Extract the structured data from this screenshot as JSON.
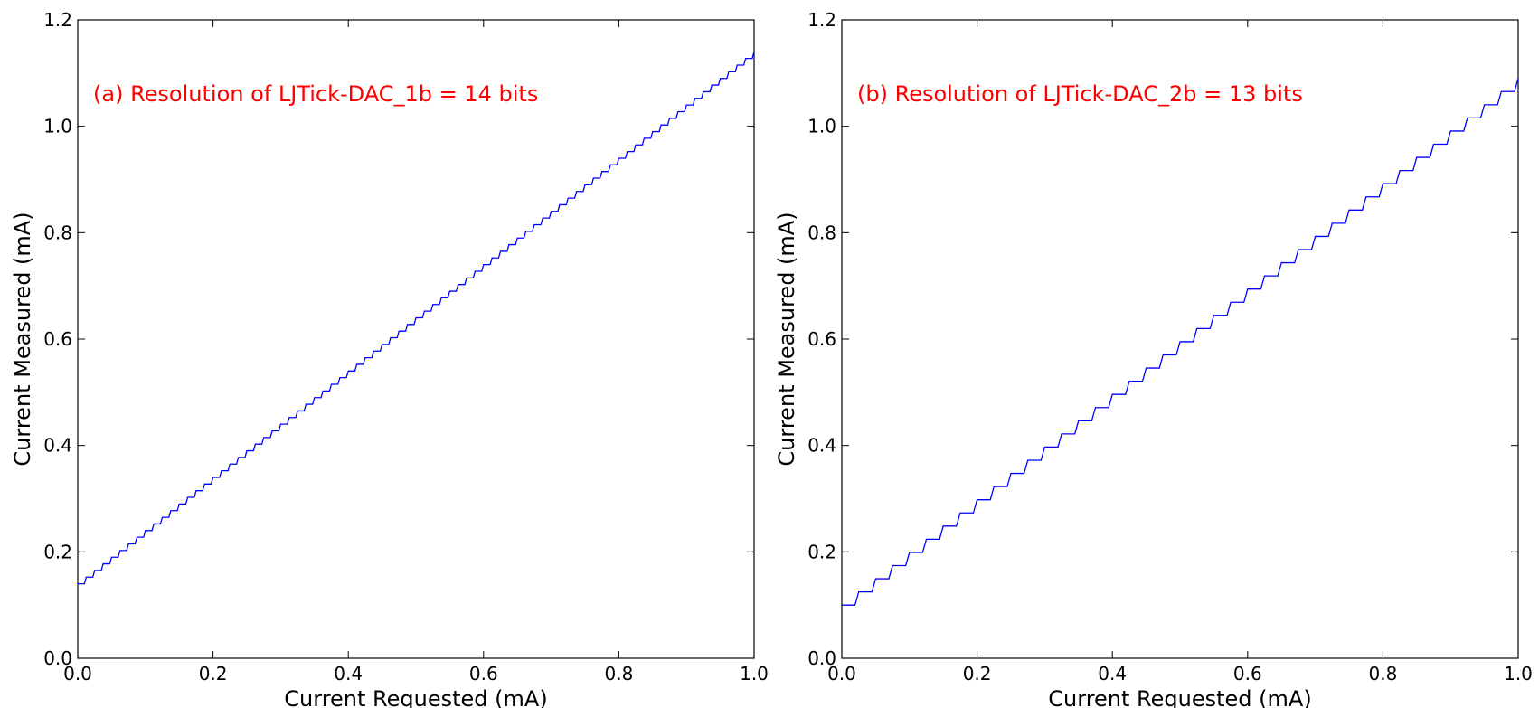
{
  "chart_data": [
    {
      "type": "line",
      "title": "",
      "xlabel": "Current Requested (mA)",
      "ylabel": "Current Measured (mA)",
      "xlim": [
        0.0,
        1.0
      ],
      "ylim": [
        0.0,
        1.2
      ],
      "xticks": [
        "0.0",
        "0.2",
        "0.4",
        "0.6",
        "0.8",
        "1.0"
      ],
      "yticks": [
        "0.0",
        "0.2",
        "0.4",
        "0.6",
        "0.8",
        "1.0",
        "1.2"
      ],
      "annotation": "(a) Resolution of LJTick-DAC_1b = 14 bits",
      "annotation_color": "#ff0000",
      "grid": false,
      "series": [
        {
          "color": "#0000ff",
          "x_start": 0.0,
          "x_end": 1.0,
          "y_start": 0.14,
          "y_end": 1.14,
          "step_count": 80,
          "shape": "staircase"
        }
      ]
    },
    {
      "type": "line",
      "title": "",
      "xlabel": "Current Requested (mA)",
      "ylabel": "Current Measured (mA)",
      "xlim": [
        0.0,
        1.0
      ],
      "ylim": [
        0.0,
        1.2
      ],
      "xticks": [
        "0.0",
        "0.2",
        "0.4",
        "0.6",
        "0.8",
        "1.0"
      ],
      "yticks": [
        "0.0",
        "0.2",
        "0.4",
        "0.6",
        "0.8",
        "1.0",
        "1.2"
      ],
      "annotation": "(b) Resolution of LJTick-DAC_2b = 13 bits",
      "annotation_color": "#ff0000",
      "grid": false,
      "series": [
        {
          "color": "#0000ff",
          "x_start": 0.0,
          "x_end": 1.0,
          "y_start": 0.1,
          "y_end": 1.09,
          "step_count": 40,
          "shape": "staircase"
        }
      ]
    }
  ]
}
